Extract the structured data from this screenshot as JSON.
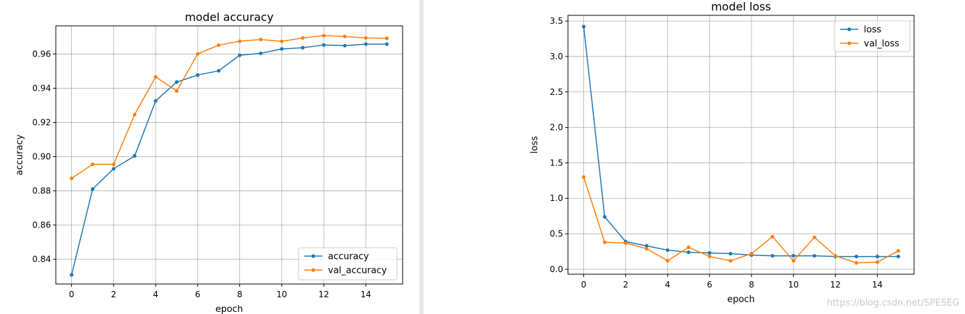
{
  "chart_data": [
    {
      "type": "line",
      "title": "model accuracy",
      "xlabel": "epoch",
      "ylabel": "accuracy",
      "grid": true,
      "legend_position": "lower-right",
      "xlim": [
        -0.75,
        15.75
      ],
      "ylim": [
        0.8255,
        0.9765
      ],
      "xticks": [
        "0",
        "2",
        "4",
        "6",
        "8",
        "10",
        "12",
        "14"
      ],
      "yticks": [
        "0.84",
        "0.86",
        "0.88",
        "0.90",
        "0.92",
        "0.94",
        "0.96"
      ],
      "x": [
        0,
        1,
        2,
        3,
        4,
        5,
        6,
        7,
        8,
        9,
        10,
        11,
        12,
        13,
        14,
        15
      ],
      "series": [
        {
          "name": "accuracy",
          "color": "#1f77b4",
          "values": [
            0.8308,
            0.881,
            0.8929,
            0.9004,
            0.9326,
            0.9436,
            0.9477,
            0.9502,
            0.9593,
            0.9604,
            0.963,
            0.9637,
            0.9653,
            0.9649,
            0.9658,
            0.9658
          ]
        },
        {
          "name": "val_accuracy",
          "color": "#ff7f0e",
          "values": [
            0.8873,
            0.8955,
            0.8955,
            0.9246,
            0.9466,
            0.9384,
            0.9601,
            0.9652,
            0.9675,
            0.9685,
            0.9674,
            0.9694,
            0.9708,
            0.9703,
            0.9694,
            0.9692
          ]
        }
      ]
    },
    {
      "type": "line",
      "title": "model loss",
      "xlabel": "epoch",
      "ylabel": "loss",
      "grid": true,
      "legend_position": "upper-right",
      "xlim": [
        -0.75,
        15.75
      ],
      "ylim": [
        -0.07,
        3.58
      ],
      "xticks": [
        "0",
        "2",
        "4",
        "6",
        "8",
        "10",
        "12",
        "14"
      ],
      "yticks": [
        "0.0",
        "0.5",
        "1.0",
        "1.5",
        "2.0",
        "2.5",
        "3.0",
        "3.5"
      ],
      "x": [
        0,
        1,
        2,
        3,
        4,
        5,
        6,
        7,
        8,
        9,
        10,
        11,
        12,
        13,
        14,
        15
      ],
      "series": [
        {
          "name": "loss",
          "color": "#1f77b4",
          "values": [
            3.42,
            0.74,
            0.39,
            0.33,
            0.27,
            0.24,
            0.23,
            0.22,
            0.2,
            0.19,
            0.19,
            0.19,
            0.18,
            0.18,
            0.18,
            0.18
          ]
        },
        {
          "name": "val_loss",
          "color": "#ff7f0e",
          "values": [
            1.3,
            0.38,
            0.37,
            0.29,
            0.12,
            0.31,
            0.18,
            0.12,
            0.22,
            0.46,
            0.12,
            0.45,
            0.19,
            0.09,
            0.1,
            0.26
          ]
        }
      ]
    }
  ],
  "watermark": "https://blog.csdn.net/SPESEG"
}
